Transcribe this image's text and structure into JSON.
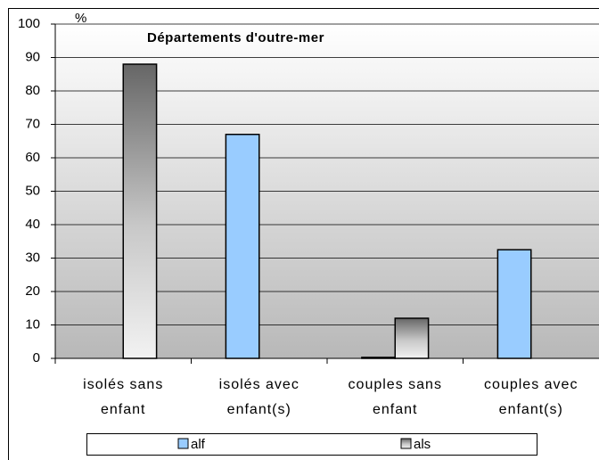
{
  "chart_data": {
    "type": "bar",
    "title": "Départements d'outre-mer",
    "y_label": "%",
    "categories": [
      "isolés sans enfant",
      "isolés avec enfant(s)",
      "couples sans enfant",
      "couples avec enfant(s)"
    ],
    "series": [
      {
        "name": "alf",
        "color": "#99ccff",
        "values": [
          0,
          67,
          0.3,
          32.5
        ]
      },
      {
        "name": "als",
        "color": "gradient-gray",
        "values": [
          88,
          0,
          12,
          0
        ]
      }
    ],
    "ylim": [
      0,
      100
    ],
    "yticks": [
      0,
      10,
      20,
      30,
      40,
      50,
      60,
      70,
      80,
      90,
      100
    ],
    "grid": true,
    "legend": "bottom"
  }
}
